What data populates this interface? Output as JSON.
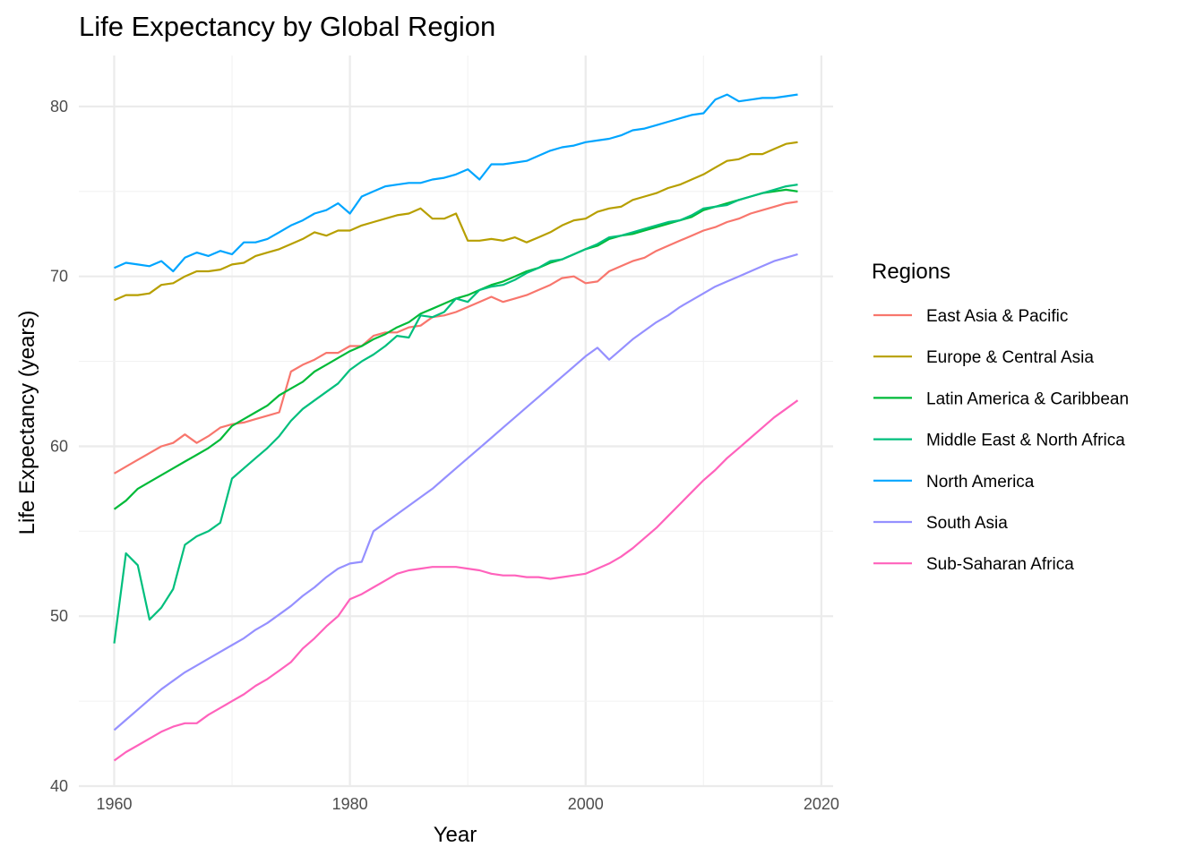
{
  "chart_data": {
    "type": "line",
    "title": "Life Expectancy by Global Region",
    "xlabel": "Year",
    "ylabel": "Life Expectancy (years)",
    "xlim": [
      1957,
      2021
    ],
    "ylim": [
      40,
      83
    ],
    "xticks": [
      1960,
      1980,
      2000,
      2020
    ],
    "yticks": [
      40,
      50,
      60,
      70,
      80
    ],
    "grid": true,
    "legend": {
      "title": "Regions",
      "position": "right"
    },
    "x": [
      1960,
      1961,
      1962,
      1963,
      1964,
      1965,
      1966,
      1967,
      1968,
      1969,
      1970,
      1971,
      1972,
      1973,
      1974,
      1975,
      1976,
      1977,
      1978,
      1979,
      1980,
      1981,
      1982,
      1983,
      1984,
      1985,
      1986,
      1987,
      1988,
      1989,
      1990,
      1991,
      1992,
      1993,
      1994,
      1995,
      1996,
      1997,
      1998,
      1999,
      2000,
      2001,
      2002,
      2003,
      2004,
      2005,
      2006,
      2007,
      2008,
      2009,
      2010,
      2011,
      2012,
      2013,
      2014,
      2015,
      2016,
      2017,
      2018
    ],
    "series": [
      {
        "name": "East Asia & Pacific",
        "color": "#F8766D",
        "values": [
          58.4,
          58.8,
          59.2,
          59.6,
          60.0,
          60.2,
          60.7,
          60.2,
          60.6,
          61.1,
          61.3,
          61.4,
          61.6,
          61.8,
          62.0,
          64.4,
          64.8,
          65.1,
          65.5,
          65.5,
          65.9,
          65.9,
          66.5,
          66.7,
          66.7,
          67.0,
          67.1,
          67.6,
          67.7,
          67.9,
          68.2,
          68.5,
          68.8,
          68.5,
          68.7,
          68.9,
          69.2,
          69.5,
          69.9,
          70.0,
          69.6,
          69.7,
          70.3,
          70.6,
          70.9,
          71.1,
          71.5,
          71.8,
          72.1,
          72.4,
          72.7,
          72.9,
          73.2,
          73.4,
          73.7,
          73.9,
          74.1,
          74.3,
          74.4
        ]
      },
      {
        "name": "Europe & Central Asia",
        "color": "#B79F00",
        "values": [
          68.6,
          68.9,
          68.9,
          69.0,
          69.5,
          69.6,
          70.0,
          70.3,
          70.3,
          70.4,
          70.7,
          70.8,
          71.2,
          71.4,
          71.6,
          71.9,
          72.2,
          72.6,
          72.4,
          72.7,
          72.7,
          73.0,
          73.2,
          73.4,
          73.6,
          73.7,
          74.0,
          73.4,
          73.4,
          73.7,
          72.1,
          72.1,
          72.2,
          72.1,
          72.3,
          72.0,
          72.3,
          72.6,
          73.0,
          73.3,
          73.4,
          73.8,
          74.0,
          74.1,
          74.5,
          74.7,
          74.9,
          75.2,
          75.4,
          75.7,
          76.0,
          76.4,
          76.8,
          76.9,
          77.2,
          77.2,
          77.5,
          77.8,
          77.9
        ]
      },
      {
        "name": "Latin America & Caribbean",
        "color": "#00BA38",
        "values": [
          56.3,
          56.8,
          57.5,
          57.9,
          58.3,
          58.7,
          59.1,
          59.5,
          59.9,
          60.4,
          61.2,
          61.6,
          62.0,
          62.4,
          63.0,
          63.4,
          63.8,
          64.4,
          64.8,
          65.2,
          65.6,
          65.9,
          66.3,
          66.6,
          67.0,
          67.3,
          67.8,
          68.1,
          68.4,
          68.7,
          68.9,
          69.2,
          69.5,
          69.7,
          70.0,
          70.3,
          70.5,
          70.8,
          71.0,
          71.3,
          71.6,
          71.8,
          72.2,
          72.4,
          72.5,
          72.7,
          72.9,
          73.1,
          73.3,
          73.5,
          73.9,
          74.1,
          74.3,
          74.5,
          74.7,
          74.9,
          75.0,
          75.1,
          75.0
        ]
      },
      {
        "name": "Middle East & North Africa",
        "color": "#00BF7D",
        "values": [
          48.4,
          53.7,
          53.0,
          49.8,
          50.5,
          51.6,
          54.2,
          54.7,
          55.0,
          55.5,
          58.1,
          58.7,
          59.3,
          59.9,
          60.6,
          61.5,
          62.2,
          62.7,
          63.2,
          63.7,
          64.5,
          65.0,
          65.4,
          65.9,
          66.5,
          66.4,
          67.7,
          67.6,
          67.9,
          68.7,
          68.5,
          69.2,
          69.4,
          69.5,
          69.8,
          70.2,
          70.5,
          70.9,
          71.0,
          71.3,
          71.6,
          71.9,
          72.3,
          72.4,
          72.6,
          72.8,
          73.0,
          73.2,
          73.3,
          73.6,
          74.0,
          74.1,
          74.2,
          74.5,
          74.7,
          74.9,
          75.1,
          75.3,
          75.4
        ]
      },
      {
        "name": "North America",
        "color": "#00A5FF",
        "values": [
          70.5,
          70.8,
          70.7,
          70.6,
          70.9,
          70.3,
          71.1,
          71.4,
          71.2,
          71.5,
          71.3,
          72.0,
          72.0,
          72.2,
          72.6,
          73.0,
          73.3,
          73.7,
          73.9,
          74.3,
          73.7,
          74.7,
          75.0,
          75.3,
          75.4,
          75.5,
          75.5,
          75.7,
          75.8,
          76.0,
          76.3,
          75.7,
          76.6,
          76.6,
          76.7,
          76.8,
          77.1,
          77.4,
          77.6,
          77.7,
          77.9,
          78.0,
          78.1,
          78.3,
          78.6,
          78.7,
          78.9,
          79.1,
          79.3,
          79.5,
          79.6,
          80.4,
          80.7,
          80.3,
          80.4,
          80.5,
          80.5,
          80.6,
          80.7
        ]
      },
      {
        "name": "South Asia",
        "color": "#9590FF",
        "values": [
          43.3,
          43.9,
          44.5,
          45.1,
          45.7,
          46.2,
          46.7,
          47.1,
          47.5,
          47.9,
          48.3,
          48.7,
          49.2,
          49.6,
          50.1,
          50.6,
          51.2,
          51.7,
          52.3,
          52.8,
          53.1,
          53.2,
          55.0,
          55.5,
          56.0,
          56.5,
          57.0,
          57.5,
          58.1,
          58.7,
          59.3,
          59.9,
          60.5,
          61.1,
          61.7,
          62.3,
          62.9,
          63.5,
          64.1,
          64.7,
          65.3,
          65.8,
          65.1,
          65.7,
          66.3,
          66.8,
          67.3,
          67.7,
          68.2,
          68.6,
          69.0,
          69.4,
          69.7,
          70.0,
          70.3,
          70.6,
          70.9,
          71.1,
          71.3
        ]
      },
      {
        "name": "Sub-Saharan Africa",
        "color": "#FF62BC",
        "values": [
          41.5,
          42.0,
          42.4,
          42.8,
          43.2,
          43.5,
          43.7,
          43.7,
          44.2,
          44.6,
          45.0,
          45.4,
          45.9,
          46.3,
          46.8,
          47.3,
          48.1,
          48.7,
          49.4,
          50.0,
          51.0,
          51.3,
          51.7,
          52.1,
          52.5,
          52.7,
          52.8,
          52.9,
          52.9,
          52.9,
          52.8,
          52.7,
          52.5,
          52.4,
          52.4,
          52.3,
          52.3,
          52.2,
          52.3,
          52.4,
          52.5,
          52.8,
          53.1,
          53.5,
          54.0,
          54.6,
          55.2,
          55.9,
          56.6,
          57.3,
          58.0,
          58.6,
          59.3,
          59.9,
          60.5,
          61.1,
          61.7,
          62.2,
          62.7
        ]
      }
    ]
  }
}
